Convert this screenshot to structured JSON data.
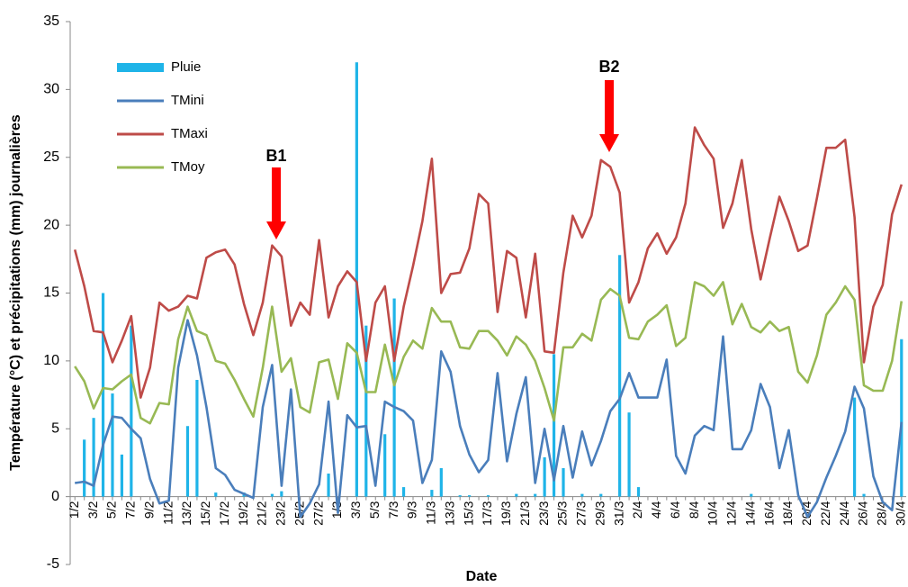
{
  "chart_data": {
    "type": "combo",
    "x_label": "Date",
    "y_label": "Température (°C) et précipitations (mm) journalières",
    "ylim": [
      -5,
      35
    ],
    "yticks": [
      -5,
      0,
      5,
      10,
      15,
      20,
      25,
      30,
      35
    ],
    "grid": false,
    "legend": "upper-left",
    "annotations": [
      "B1",
      "B2"
    ],
    "annotation_color": "#ff0000",
    "categories": [
      "1/2",
      null,
      "3/2",
      null,
      "5/2",
      null,
      "7/2",
      null,
      "9/2",
      null,
      "11/2",
      null,
      "13/2",
      null,
      "15/2",
      null,
      "17/2",
      null,
      "19/2",
      null,
      "21/2",
      null,
      "23/2",
      null,
      "25/2",
      null,
      "27/2",
      null,
      "1/3",
      null,
      "3/3",
      null,
      "5/3",
      null,
      "7/3",
      null,
      "9/3",
      null,
      "11/3",
      null,
      "13/3",
      null,
      "15/3",
      null,
      "17/3",
      null,
      "19/3",
      null,
      "21/3",
      null,
      "23/3",
      null,
      "25/3",
      null,
      "27/3",
      null,
      "29/3",
      null,
      "31/3",
      null,
      "2/4",
      null,
      "4/4",
      null,
      "6/4",
      null,
      "8/4",
      null,
      "10/4",
      null,
      "12/4",
      null,
      "14/4",
      null,
      "16/4",
      null,
      "18/4",
      null,
      "20/4",
      null,
      "22/4",
      null,
      "24/4",
      null,
      "26/4",
      null,
      "28/4",
      null,
      "30/4"
    ],
    "series": [
      {
        "name": "Pluie",
        "type": "bar",
        "color": "#1fb4e8",
        "values": [
          0,
          4.2,
          5.8,
          15,
          7.6,
          3.1,
          12.6,
          0,
          0,
          0,
          0,
          0,
          5.2,
          8.6,
          0,
          0.3,
          0,
          0,
          0.3,
          0,
          0,
          0.2,
          0.4,
          0,
          0,
          0,
          0,
          1.7,
          0,
          0,
          32,
          12.6,
          0,
          4.6,
          14.6,
          0.7,
          0,
          0,
          0.5,
          2.1,
          0,
          0.1,
          0.1,
          0,
          0.1,
          0,
          0,
          0.2,
          0,
          0.2,
          2.9,
          10.5,
          2.1,
          0,
          0.2,
          0,
          0.2,
          0,
          17.8,
          6.2,
          0.7,
          0,
          0,
          0,
          0,
          0,
          0,
          0,
          0,
          0,
          0,
          0,
          0.2,
          0,
          0,
          0,
          0,
          0,
          0,
          0,
          0,
          0,
          0,
          7.3,
          0.2,
          0,
          0,
          0,
          11.6
        ]
      },
      {
        "name": "TMini",
        "type": "line",
        "color": "#4a7ebb",
        "values": [
          1.0,
          1.1,
          0.8,
          3.8,
          5.9,
          5.8,
          5.0,
          4.3,
          1.3,
          -0.5,
          -0.3,
          9.5,
          13.0,
          10.4,
          6.6,
          2.1,
          1.6,
          0.5,
          0.2,
          -0.1,
          6.6,
          9.7,
          0.8,
          7.9,
          -1.5,
          -0.5,
          0.9,
          7.0,
          -1.2,
          6.0,
          5.1,
          5.2,
          0.8,
          7.0,
          6.6,
          6.3,
          5.6,
          1.0,
          2.7,
          10.7,
          9.2,
          5.2,
          3.1,
          1.8,
          2.7,
          9.1,
          2.6,
          6.1,
          8.8,
          1.0,
          5.0,
          1.2,
          5.2,
          1.4,
          4.8,
          2.3,
          4.1,
          6.3,
          7.2,
          9.1,
          7.3,
          7.3,
          7.3,
          10.1,
          3.0,
          1.7,
          4.5,
          5.2,
          4.9,
          11.8,
          3.5,
          3.5,
          4.9,
          8.3,
          6.6,
          2.1,
          4.9,
          0.1,
          -1.5,
          -0.4,
          1.4,
          3.0,
          4.8,
          8.1,
          6.5,
          1.5,
          -0.4,
          -1.0,
          5.5
        ]
      },
      {
        "name": "TMaxi",
        "type": "line",
        "color": "#be4b48",
        "values": [
          18.2,
          15.5,
          12.2,
          12.1,
          9.9,
          11.5,
          13.3,
          7.3,
          9.5,
          14.3,
          13.7,
          14.0,
          14.8,
          14.6,
          17.6,
          18.0,
          18.2,
          17.1,
          14.2,
          11.9,
          14.3,
          18.5,
          17.7,
          12.6,
          14.3,
          13.4,
          18.9,
          13.2,
          15.5,
          16.6,
          15.8,
          10.0,
          14.3,
          15.5,
          10.0,
          14.0,
          17.0,
          20.3,
          24.9,
          15.0,
          16.4,
          16.5,
          18.3,
          22.3,
          21.6,
          13.6,
          18.1,
          17.6,
          13.2,
          17.9,
          10.7,
          10.6,
          16.5,
          20.7,
          19.1,
          20.7,
          24.8,
          24.3,
          22.4,
          14.3,
          15.8,
          18.3,
          19.4,
          17.9,
          19.1,
          21.6,
          27.2,
          25.9,
          24.9,
          19.8,
          21.6,
          24.8,
          19.7,
          16.0,
          19.1,
          22.1,
          20.3,
          18.1,
          18.5,
          22.0,
          25.7,
          25.7,
          26.3,
          20.6,
          9.9,
          14.0,
          15.6,
          20.8,
          23.0
        ]
      },
      {
        "name": "TMoy",
        "type": "line",
        "color": "#98b954",
        "values": [
          9.6,
          8.5,
          6.5,
          8.0,
          7.9,
          8.5,
          9.0,
          5.8,
          5.4,
          6.9,
          6.8,
          11.6,
          14.0,
          12.2,
          11.9,
          10.0,
          9.8,
          8.6,
          7.2,
          5.9,
          9.5,
          14.0,
          9.2,
          10.2,
          6.6,
          6.2,
          9.9,
          10.1,
          7.2,
          11.3,
          10.6,
          7.7,
          7.7,
          11.2,
          8.2,
          10.3,
          11.5,
          10.9,
          13.9,
          12.9,
          12.9,
          11.0,
          10.9,
          12.2,
          12.2,
          11.5,
          10.4,
          11.8,
          11.2,
          10.0,
          8.0,
          5.6,
          11.0,
          11.0,
          12.0,
          11.5,
          14.5,
          15.3,
          14.8,
          11.7,
          11.6,
          12.9,
          13.4,
          14.1,
          11.1,
          11.7,
          15.8,
          15.5,
          14.8,
          15.8,
          12.7,
          14.2,
          12.5,
          12.1,
          12.9,
          12.2,
          12.5,
          9.2,
          8.4,
          10.4,
          13.4,
          14.3,
          15.5,
          14.5,
          8.2,
          7.8,
          7.8,
          10.0,
          14.4
        ]
      }
    ]
  }
}
